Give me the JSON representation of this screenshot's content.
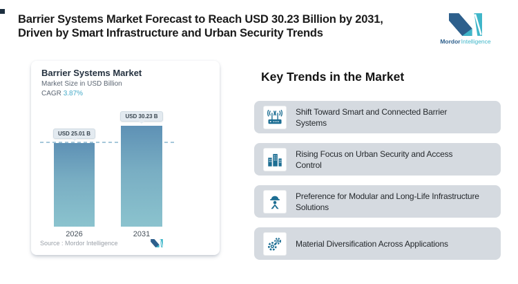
{
  "header": {
    "title_line1": "Barrier Systems Market Forecast to Reach USD 30.23 Billion by 2031,",
    "title_line2": "Driven by Smart Infrastructure and Urban Security Trends"
  },
  "logo": {
    "brand_bold": "Mordor",
    "brand_light": "Intelligence"
  },
  "chart_card": {
    "title": "Barrier Systems Market",
    "subtitle": "Market Size in USD Billion",
    "cagr_label": "CAGR",
    "cagr_value": "3.87%",
    "source": "Source :  Mordor Intelligence"
  },
  "chart_data": {
    "type": "bar",
    "categories": [
      "2026",
      "2031"
    ],
    "values": [
      25.01,
      30.23
    ],
    "bar_labels": [
      "USD 25.01 B",
      "USD 30.23 B"
    ],
    "title": "Barrier Systems Market",
    "ylabel": "Market Size in USD Billion",
    "cagr": "3.87%",
    "ylim": [
      0,
      32
    ],
    "reference_line_at": 25.01,
    "grid": false,
    "legend": false,
    "bar_color_top": "#5e91b5",
    "bar_color_bottom": "#8bc3ce"
  },
  "trends": {
    "heading": "Key Trends in the Market",
    "items": [
      {
        "icon": "router-signal-icon",
        "lines": [
          "Shift Toward Smart and Connected Barrier",
          "Systems"
        ]
      },
      {
        "icon": "buildings-icon",
        "lines": [
          "Rising Focus on Urban Security and Access",
          "Control"
        ]
      },
      {
        "icon": "engineer-icon",
        "lines": [
          "Preference for Modular and Long-Life Infrastructure",
          "Solutions"
        ]
      },
      {
        "icon": "gears-icon",
        "lines": [
          "Material Diversification Across Applications"
        ]
      }
    ]
  },
  "colors": {
    "brand_navy": "#2d5f8c",
    "brand_teal": "#3fb6c9",
    "icon_teal": "#1d6e93",
    "cagr_teal": "#45aac8",
    "trend_card_bg": "#d5dae0",
    "dashed_line": "#a5c7da"
  }
}
